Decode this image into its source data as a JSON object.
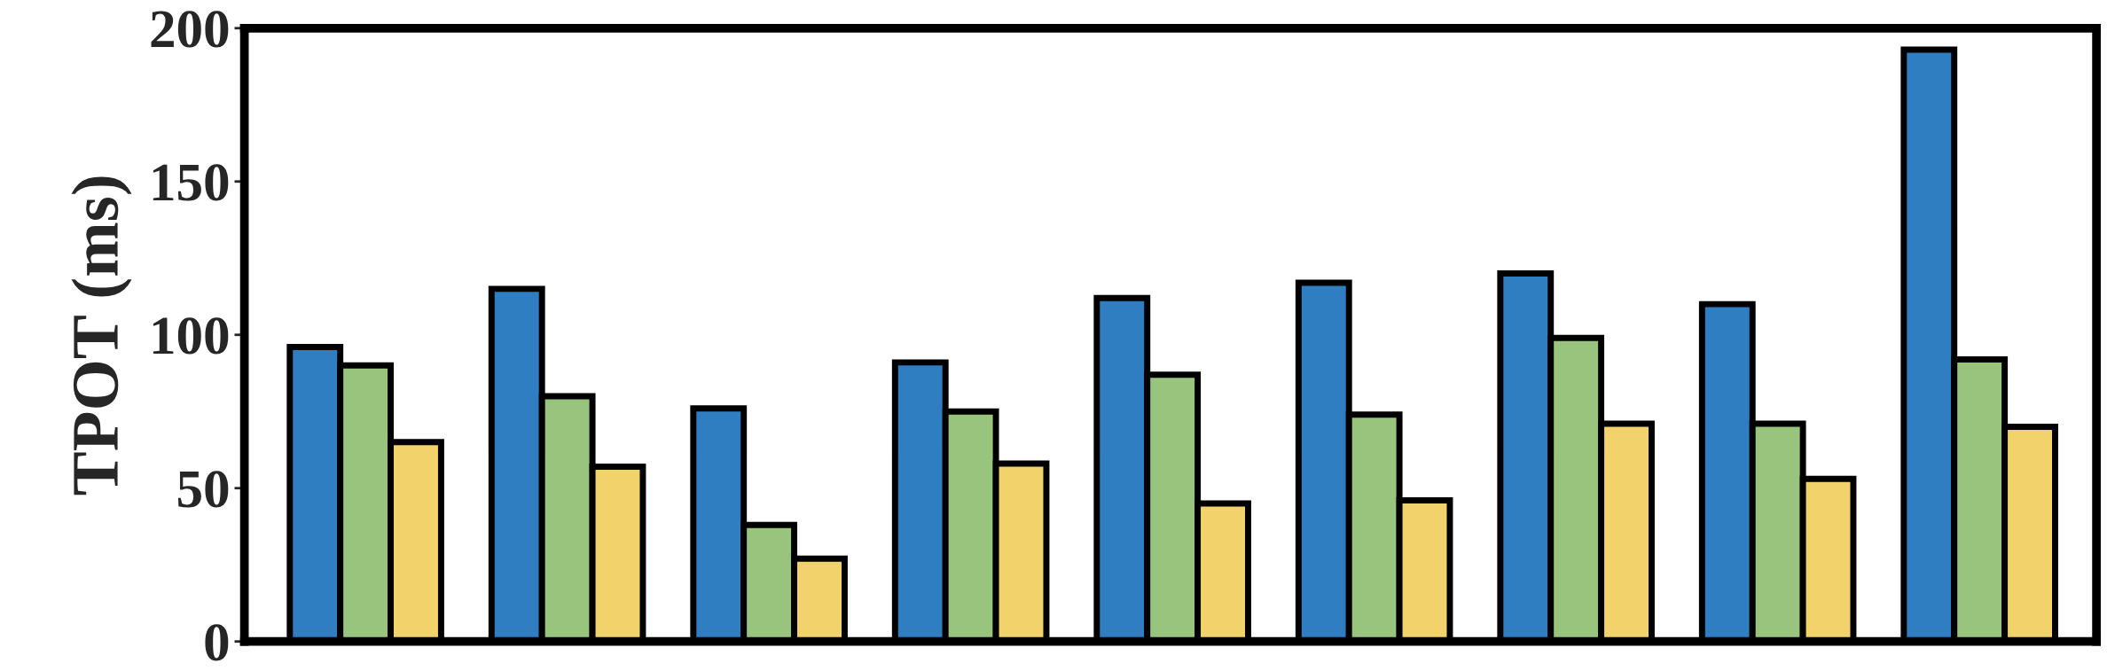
{
  "chart_data": {
    "type": "bar",
    "ylabel": "TPOT (ms)",
    "categories": [
      null,
      null,
      null,
      null,
      null,
      null,
      null,
      null,
      null
    ],
    "series": [
      {
        "color": "#2f7ec1",
        "values": [
          96,
          115,
          76,
          91,
          112,
          117,
          120,
          110,
          193
        ]
      },
      {
        "color": "#99c47e",
        "values": [
          90,
          80,
          38,
          75,
          87,
          74,
          99,
          71,
          92
        ]
      },
      {
        "color": "#f2d36b",
        "values": [
          65,
          57,
          27,
          58,
          45,
          46,
          71,
          53,
          70
        ]
      }
    ],
    "ylim": [
      0,
      200
    ],
    "yticks": [
      0,
      50,
      100,
      150,
      200
    ],
    "grid": false,
    "legend": false
  }
}
